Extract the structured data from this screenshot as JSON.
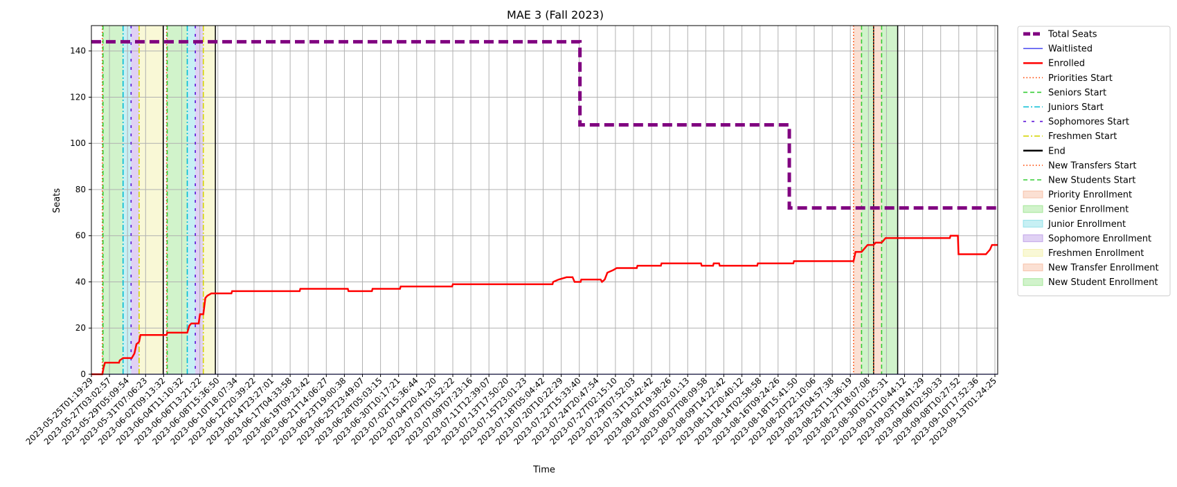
{
  "chart_data": {
    "type": "line",
    "title": "MAE 3 (Fall 2023)",
    "xlabel": "Time",
    "ylabel": "Seats",
    "ylim": [
      0,
      151
    ],
    "x_range": [
      "2023-05-25T01:19:29",
      "2023-09-14T23:00:00"
    ],
    "grid": true,
    "legend_placement": "outside upper right",
    "x_tick_labels": [
      "2023-05-25T01:19:29",
      "2023-05-27T03:02:57",
      "2023-05-29T05:09:54",
      "2023-05-31T07:06:23",
      "2023-06-02T09:13:32",
      "2023-06-04T11:10:32",
      "2023-06-06T13:21:22",
      "2023-06-08T15:36:50",
      "2023-06-10T18:07:34",
      "2023-06-12T20:39:22",
      "2023-06-14T23:27:01",
      "2023-06-17T04:33:58",
      "2023-06-19T09:23:42",
      "2023-06-21T14:06:27",
      "2023-06-23T19:00:38",
      "2023-06-25T23:49:07",
      "2023-06-28T05:03:15",
      "2023-06-30T10:17:21",
      "2023-07-02T15:36:44",
      "2023-07-04T20:41:20",
      "2023-07-07T01:52:22",
      "2023-07-09T07:23:16",
      "2023-07-11T12:39:07",
      "2023-07-13T17:50:20",
      "2023-07-15T23:01:23",
      "2023-07-18T05:04:42",
      "2023-07-20T10:22:29",
      "2023-07-22T15:33:40",
      "2023-07-24T20:47:54",
      "2023-07-27T02:15:10",
      "2023-07-29T07:52:03",
      "2023-07-31T13:42:42",
      "2023-08-02T19:38:26",
      "2023-08-05T02:01:13",
      "2023-08-07T08:09:58",
      "2023-08-09T14:22:42",
      "2023-08-11T20:40:12",
      "2023-08-14T02:58:58",
      "2023-08-16T09:24:26",
      "2023-08-18T15:41:50",
      "2023-08-20T22:10:06",
      "2023-08-23T04:57:38",
      "2023-08-25T11:36:19",
      "2023-08-27T18:07:08",
      "2023-08-30T01:25:31",
      "2023-09-01T10:44:12",
      "2023-09-03T19:41:29",
      "2023-09-06T02:50:33",
      "2023-09-08T10:27:52",
      "2023-09-10T17:52:36",
      "2023-09-13T01:24:25"
    ],
    "y_ticks": [
      0,
      20,
      40,
      60,
      80,
      100,
      120,
      140
    ],
    "enrollment_periods": [
      {
        "name": "Priority Enrollment",
        "color": "#f4a582",
        "x": [
          "2023-05-26T10:00:00",
          "2023-05-26T12:00:00"
        ]
      },
      {
        "name": "Senior Enrollment",
        "color": "#7bdc6b",
        "x": [
          "2023-05-26T12:00:00",
          "2023-05-29T00:00:00"
        ]
      },
      {
        "name": "Junior Enrollment",
        "color": "#5fd3e0",
        "x": [
          "2023-05-29T00:00:00",
          "2023-05-30T00:00:00"
        ]
      },
      {
        "name": "Sophomore Enrollment",
        "color": "#a57be0",
        "x": [
          "2023-05-30T00:00:00",
          "2023-05-31T00:00:00"
        ]
      },
      {
        "name": "Freshmen Enrollment",
        "color": "#eeeb8a",
        "x": [
          "2023-05-31T00:00:00",
          "2023-06-03T00:00:00"
        ]
      },
      {
        "name": "Priority Enrollment",
        "color": "#f4a582",
        "x": [
          "2023-06-03T10:00:00",
          "2023-06-03T12:00:00"
        ]
      },
      {
        "name": "Senior Enrollment",
        "color": "#7bdc6b",
        "x": [
          "2023-06-03T12:00:00",
          "2023-06-06T00:00:00"
        ]
      },
      {
        "name": "Junior Enrollment",
        "color": "#5fd3e0",
        "x": [
          "2023-06-06T00:00:00",
          "2023-06-07T00:00:00"
        ]
      },
      {
        "name": "Sophomore Enrollment",
        "color": "#a57be0",
        "x": [
          "2023-06-07T00:00:00",
          "2023-06-08T00:00:00"
        ]
      },
      {
        "name": "Freshmen Enrollment",
        "color": "#eeeb8a",
        "x": [
          "2023-06-08T00:00:00",
          "2023-06-09T12:00:00"
        ]
      },
      {
        "name": "New Transfer Enrollment",
        "color": "#f4a582",
        "x": [
          "2023-08-28T00:00:00",
          "2023-08-29T00:00:00"
        ]
      },
      {
        "name": "New Student Enrollment",
        "color": "#7bdc6b",
        "x": [
          "2023-08-29T00:00:00",
          "2023-08-30T12:00:00"
        ]
      },
      {
        "name": "New Transfer Enrollment",
        "color": "#f4a582",
        "x": [
          "2023-08-30T12:00:00",
          "2023-08-31T12:00:00"
        ]
      },
      {
        "name": "New Student Enrollment",
        "color": "#7bdc6b",
        "x": [
          "2023-08-31T12:00:00",
          "2023-09-02T12:00:00"
        ]
      }
    ],
    "event_lines": [
      {
        "name": "Priorities Start",
        "x": "2023-05-26T10:00:00",
        "color": "#ff4500",
        "style": "dotted"
      },
      {
        "name": "Seniors Start",
        "x": "2023-05-26T12:00:00",
        "color": "#32cd32",
        "style": "dashed"
      },
      {
        "name": "Juniors Start",
        "x": "2023-05-29T00:00:00",
        "color": "#00bcd4",
        "style": "dashdot"
      },
      {
        "name": "Sophomores Start",
        "x": "2023-05-30T00:00:00",
        "color": "#5a0fd8",
        "style": "loosedash"
      },
      {
        "name": "Freshmen Start",
        "x": "2023-05-31T00:00:00",
        "color": "#d4d400",
        "style": "dashdot"
      },
      {
        "name": "End",
        "x": "2023-06-03T00:00:00",
        "color": "#000000",
        "style": "solid"
      },
      {
        "name": "Priorities Start",
        "x": "2023-06-03T10:00:00",
        "color": "#ff4500",
        "style": "dotted"
      },
      {
        "name": "Seniors Start",
        "x": "2023-06-03T12:00:00",
        "color": "#32cd32",
        "style": "dashed"
      },
      {
        "name": "Juniors Start",
        "x": "2023-06-06T00:00:00",
        "color": "#00bcd4",
        "style": "dashdot"
      },
      {
        "name": "Sophomores Start",
        "x": "2023-06-07T00:00:00",
        "color": "#5a0fd8",
        "style": "loosedash"
      },
      {
        "name": "Freshmen Start",
        "x": "2023-06-08T00:00:00",
        "color": "#d4d400",
        "style": "dashdot"
      },
      {
        "name": "End",
        "x": "2023-06-09T12:00:00",
        "color": "#000000",
        "style": "solid"
      },
      {
        "name": "New Transfers Start",
        "x": "2023-08-28T00:00:00",
        "color": "#ff4500",
        "style": "dotted"
      },
      {
        "name": "New Students Start",
        "x": "2023-08-29T00:00:00",
        "color": "#32cd32",
        "style": "dashed"
      },
      {
        "name": "End",
        "x": "2023-08-30T12:00:00",
        "color": "#000000",
        "style": "solid"
      },
      {
        "name": "New Transfers Start",
        "x": "2023-08-30T12:00:00",
        "color": "#ff4500",
        "style": "dotted"
      },
      {
        "name": "New Students Start",
        "x": "2023-08-31T12:00:00",
        "color": "#32cd32",
        "style": "dashed"
      },
      {
        "name": "End",
        "x": "2023-09-02T12:00:00",
        "color": "#000000",
        "style": "solid"
      }
    ],
    "series": [
      {
        "name": "Total Seats",
        "color": "#800080",
        "style": "dashed-thick",
        "points": [
          [
            "2023-05-25T01:19:29",
            144
          ],
          [
            "2023-07-24T22:00:00",
            144
          ],
          [
            "2023-07-24T22:00:00",
            108
          ],
          [
            "2023-08-20T00:00:00",
            108
          ],
          [
            "2023-08-20T00:00:00",
            72
          ],
          [
            "2023-09-14T23:00:00",
            72
          ]
        ]
      },
      {
        "name": "Waitlisted",
        "color": "#2222ee",
        "style": "solid-thin",
        "points": [
          [
            "2023-05-25T01:19:29",
            0
          ],
          [
            "2023-09-14T23:00:00",
            0
          ]
        ]
      },
      {
        "name": "Enrolled",
        "color": "#ff0000",
        "style": "solid",
        "points": [
          [
            "2023-05-25T01:19:29",
            0
          ],
          [
            "2023-05-26T10:00:00",
            0
          ],
          [
            "2023-05-26T14:00:00",
            3
          ],
          [
            "2023-05-26T18:00:00",
            5
          ],
          [
            "2023-05-28T12:00:00",
            5
          ],
          [
            "2023-05-28T14:00:00",
            6
          ],
          [
            "2023-05-29T00:00:00",
            7
          ],
          [
            "2023-05-30T02:00:00",
            7
          ],
          [
            "2023-05-30T10:00:00",
            9
          ],
          [
            "2023-05-30T16:00:00",
            13
          ],
          [
            "2023-05-31T00:00:00",
            14
          ],
          [
            "2023-05-31T04:00:00",
            17
          ],
          [
            "2023-06-03T10:00:00",
            17
          ],
          [
            "2023-06-03T12:00:00",
            18
          ],
          [
            "2023-06-06T00:00:00",
            18
          ],
          [
            "2023-06-06T06:00:00",
            21
          ],
          [
            "2023-06-06T12:00:00",
            22
          ],
          [
            "2023-06-07T10:00:00",
            22
          ],
          [
            "2023-06-07T14:00:00",
            26
          ],
          [
            "2023-06-08T00:00:00",
            26
          ],
          [
            "2023-06-08T06:00:00",
            33
          ],
          [
            "2023-06-08T12:00:00",
            34
          ],
          [
            "2023-06-09T00:00:00",
            35
          ],
          [
            "2023-06-11T12:00:00",
            35
          ],
          [
            "2023-06-11T14:00:00",
            36
          ],
          [
            "2023-06-20T00:00:00",
            36
          ],
          [
            "2023-06-20T02:00:00",
            37
          ],
          [
            "2023-06-26T00:00:00",
            37
          ],
          [
            "2023-06-26T02:00:00",
            36
          ],
          [
            "2023-06-29T00:00:00",
            36
          ],
          [
            "2023-06-29T02:00:00",
            37
          ],
          [
            "2023-07-02T12:00:00",
            37
          ],
          [
            "2023-07-02T14:00:00",
            38
          ],
          [
            "2023-07-09T00:00:00",
            38
          ],
          [
            "2023-07-09T02:00:00",
            39
          ],
          [
            "2023-07-21T12:00:00",
            39
          ],
          [
            "2023-07-21T14:00:00",
            40
          ],
          [
            "2023-07-22T06:00:00",
            41
          ],
          [
            "2023-07-23T06:00:00",
            42
          ],
          [
            "2023-07-24T00:00:00",
            42
          ],
          [
            "2023-07-24T06:00:00",
            40
          ],
          [
            "2023-07-25T00:00:00",
            40
          ],
          [
            "2023-07-25T02:00:00",
            41
          ],
          [
            "2023-07-27T12:00:00",
            41
          ],
          [
            "2023-07-27T16:00:00",
            40
          ],
          [
            "2023-07-28T00:00:00",
            41
          ],
          [
            "2023-07-28T08:00:00",
            44
          ],
          [
            "2023-07-29T00:00:00",
            45
          ],
          [
            "2023-07-29T12:00:00",
            46
          ],
          [
            "2023-08-01T00:00:00",
            46
          ],
          [
            "2023-08-01T02:00:00",
            47
          ],
          [
            "2023-08-04T00:00:00",
            47
          ],
          [
            "2023-08-04T02:00:00",
            48
          ],
          [
            "2023-08-09T00:00:00",
            48
          ],
          [
            "2023-08-09T02:00:00",
            47
          ],
          [
            "2023-08-10T12:00:00",
            47
          ],
          [
            "2023-08-10T14:00:00",
            48
          ],
          [
            "2023-08-11T06:00:00",
            48
          ],
          [
            "2023-08-11T08:00:00",
            47
          ],
          [
            "2023-08-16T00:00:00",
            47
          ],
          [
            "2023-08-16T02:00:00",
            48
          ],
          [
            "2023-08-20T12:00:00",
            48
          ],
          [
            "2023-08-20T14:00:00",
            49
          ],
          [
            "2023-08-28T00:00:00",
            49
          ],
          [
            "2023-08-28T06:00:00",
            53
          ],
          [
            "2023-08-29T00:00:00",
            53
          ],
          [
            "2023-08-29T06:00:00",
            54
          ],
          [
            "2023-08-29T12:00:00",
            55
          ],
          [
            "2023-08-29T18:00:00",
            56
          ],
          [
            "2023-08-30T12:00:00",
            56
          ],
          [
            "2023-08-30T18:00:00",
            57
          ],
          [
            "2023-08-31T12:00:00",
            57
          ],
          [
            "2023-08-31T18:00:00",
            58
          ],
          [
            "2023-09-01T00:00:00",
            59
          ],
          [
            "2023-09-09T00:00:00",
            59
          ],
          [
            "2023-09-09T02:00:00",
            60
          ],
          [
            "2023-09-10T00:00:00",
            60
          ],
          [
            "2023-09-10T02:00:00",
            52
          ],
          [
            "2023-09-13T12:00:00",
            52
          ],
          [
            "2023-09-14T00:00:00",
            54
          ],
          [
            "2023-09-14T06:00:00",
            56
          ],
          [
            "2023-09-14T23:00:00",
            56
          ]
        ]
      }
    ],
    "legend": [
      {
        "label": "Total Seats",
        "kind": "line",
        "color": "#800080",
        "style": "dashed-thick"
      },
      {
        "label": "Waitlisted",
        "kind": "line",
        "color": "#2222ee",
        "style": "solid-thin"
      },
      {
        "label": "Enrolled",
        "kind": "line",
        "color": "#ff0000",
        "style": "solid"
      },
      {
        "label": "Priorities Start",
        "kind": "line",
        "color": "#ff4500",
        "style": "dotted"
      },
      {
        "label": "Seniors Start",
        "kind": "line",
        "color": "#32cd32",
        "style": "dashed"
      },
      {
        "label": "Juniors Start",
        "kind": "line",
        "color": "#00bcd4",
        "style": "dashdot"
      },
      {
        "label": "Sophomores Start",
        "kind": "line",
        "color": "#5a0fd8",
        "style": "loosedash"
      },
      {
        "label": "Freshmen Start",
        "kind": "line",
        "color": "#d4d400",
        "style": "dashdot"
      },
      {
        "label": "End",
        "kind": "line",
        "color": "#000000",
        "style": "solid"
      },
      {
        "label": "New Transfers Start",
        "kind": "line",
        "color": "#ff4500",
        "style": "dotted"
      },
      {
        "label": "New Students Start",
        "kind": "line",
        "color": "#32cd32",
        "style": "dashed"
      },
      {
        "label": "Priority Enrollment",
        "kind": "patch",
        "color": "#f4a582"
      },
      {
        "label": "Senior Enrollment",
        "kind": "patch",
        "color": "#7bdc6b"
      },
      {
        "label": "Junior Enrollment",
        "kind": "patch",
        "color": "#5fd3e0"
      },
      {
        "label": "Sophomore Enrollment",
        "kind": "patch",
        "color": "#a57be0"
      },
      {
        "label": "Freshmen Enrollment",
        "kind": "patch",
        "color": "#eeeb8a"
      },
      {
        "label": "New Transfer Enrollment",
        "kind": "patch",
        "color": "#f4a582"
      },
      {
        "label": "New Student Enrollment",
        "kind": "patch",
        "color": "#7bdc6b"
      }
    ]
  }
}
